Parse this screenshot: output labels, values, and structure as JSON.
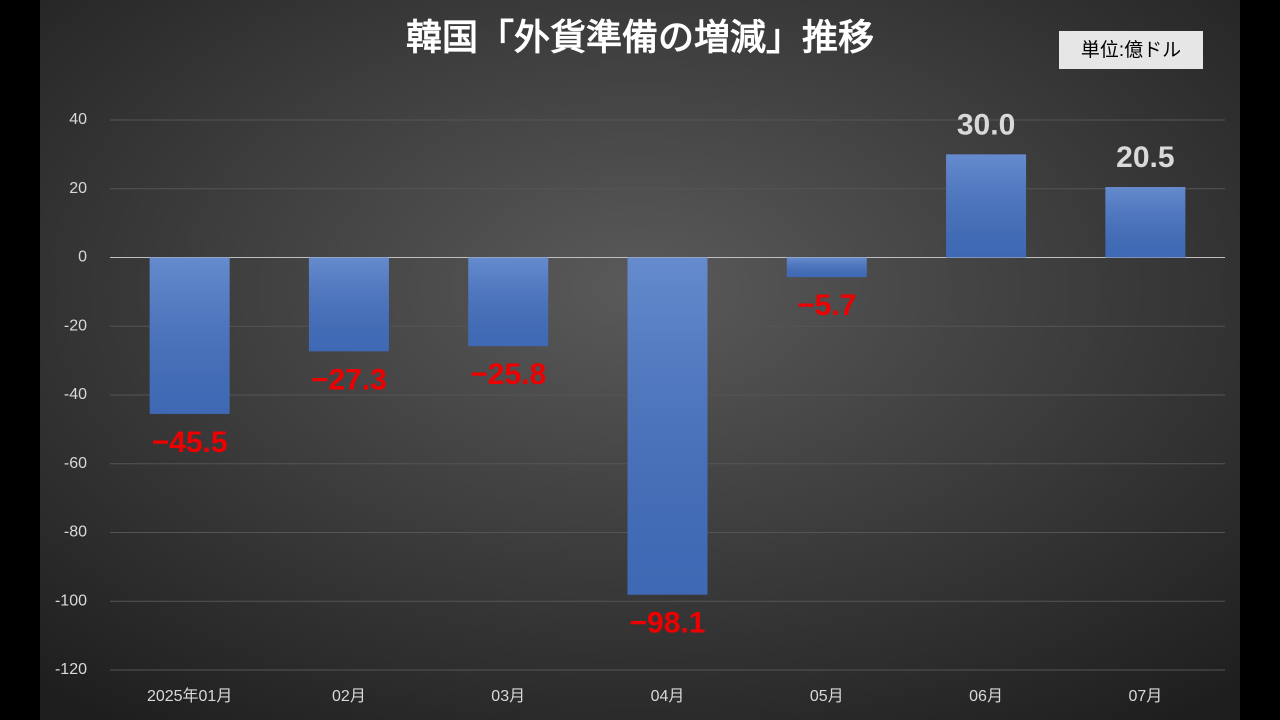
{
  "chart_data": {
    "type": "bar",
    "title": "韓国「外貨準備の増減」推移",
    "unit_label": "単位:億ドル",
    "categories": [
      "2025年01月",
      "02月",
      "03月",
      "04月",
      "05月",
      "06月",
      "07月"
    ],
    "values": [
      -45.5,
      -27.3,
      -25.8,
      -98.1,
      -5.7,
      30.0,
      20.5
    ],
    "value_labels": [
      "−45.5",
      "−27.3",
      "−25.8",
      "−98.1",
      "−5.7",
      "30.0",
      "20.5"
    ],
    "color": "#4472c4",
    "ylim": [
      -120,
      40
    ],
    "yticks": [
      -120,
      -100,
      -80,
      -60,
      -40,
      -20,
      0,
      20,
      40
    ],
    "grid": true
  }
}
